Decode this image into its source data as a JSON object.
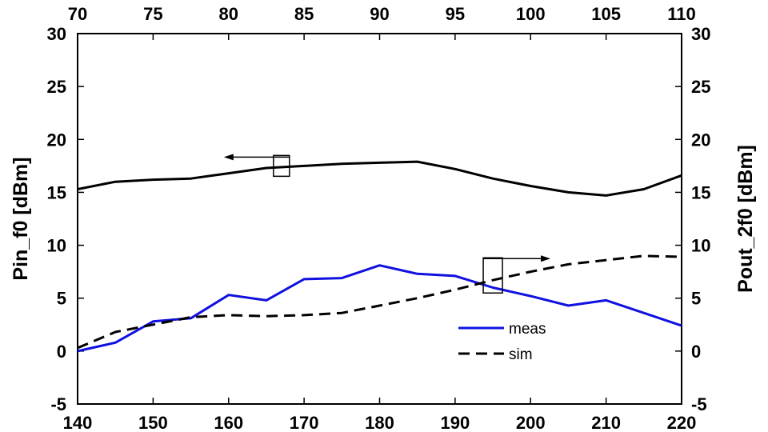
{
  "chart_data": {
    "type": "line",
    "title": "",
    "xlabel_bottom": "",
    "xlabel_top": "",
    "ylabel_left": "Pin_f0 [dBm]",
    "ylabel_right": "Pout_2f0 [dBm]",
    "xlim_bottom": [
      140,
      220
    ],
    "xlim_top": [
      70,
      110
    ],
    "ylim_left": [
      -5,
      30
    ],
    "ylim_right": [
      -5,
      30
    ],
    "x_ticks_bottom": [
      "140",
      "150",
      "160",
      "170",
      "180",
      "190",
      "200",
      "210",
      "220"
    ],
    "x_ticks_top": [
      "70",
      "75",
      "80",
      "85",
      "90",
      "95",
      "100",
      "105",
      "110"
    ],
    "y_ticks_left": [
      "-5",
      "0",
      "5",
      "10",
      "15",
      "20",
      "25",
      "30"
    ],
    "y_ticks_right": [
      "-5",
      "0",
      "5",
      "10",
      "15",
      "20",
      "25",
      "30"
    ],
    "grid": false,
    "legend_position": "lower-right",
    "series": [
      {
        "name": "",
        "axis": "left",
        "style": "solid",
        "color": "#000000",
        "x": [
          140,
          145,
          150,
          155,
          160,
          165,
          170,
          175,
          180,
          185,
          190,
          195,
          200,
          205,
          210,
          215,
          220
        ],
        "y": [
          15.3,
          16.0,
          16.2,
          16.3,
          16.8,
          17.3,
          17.5,
          17.7,
          17.8,
          17.9,
          17.2,
          16.3,
          15.6,
          15.0,
          14.7,
          15.3,
          16.6
        ]
      },
      {
        "name": "meas",
        "axis": "right",
        "style": "solid",
        "color": "#1010e0",
        "x": [
          140,
          145,
          150,
          155,
          160,
          165,
          170,
          175,
          180,
          185,
          190,
          195,
          200,
          205,
          210,
          215,
          220
        ],
        "y": [
          0.0,
          0.8,
          2.8,
          3.1,
          5.3,
          4.8,
          6.8,
          6.9,
          8.1,
          7.3,
          7.1,
          6.0,
          5.2,
          4.3,
          4.8,
          3.6,
          2.4
        ]
      },
      {
        "name": "sim",
        "axis": "right",
        "style": "dashed",
        "color": "#000000",
        "x": [
          140,
          145,
          150,
          155,
          160,
          165,
          170,
          175,
          180,
          185,
          190,
          195,
          200,
          205,
          210,
          215,
          220
        ],
        "y": [
          0.3,
          1.8,
          2.5,
          3.2,
          3.4,
          3.3,
          3.4,
          3.6,
          4.3,
          5.0,
          5.8,
          6.7,
          7.5,
          8.2,
          8.6,
          9.0,
          8.9
        ]
      }
    ],
    "annotations": [
      {
        "type": "axis-indicator",
        "points_to": "left",
        "x": 167,
        "y": 17.5
      },
      {
        "type": "axis-indicator",
        "points_to": "right",
        "x": 195,
        "y": 7.0
      }
    ]
  }
}
